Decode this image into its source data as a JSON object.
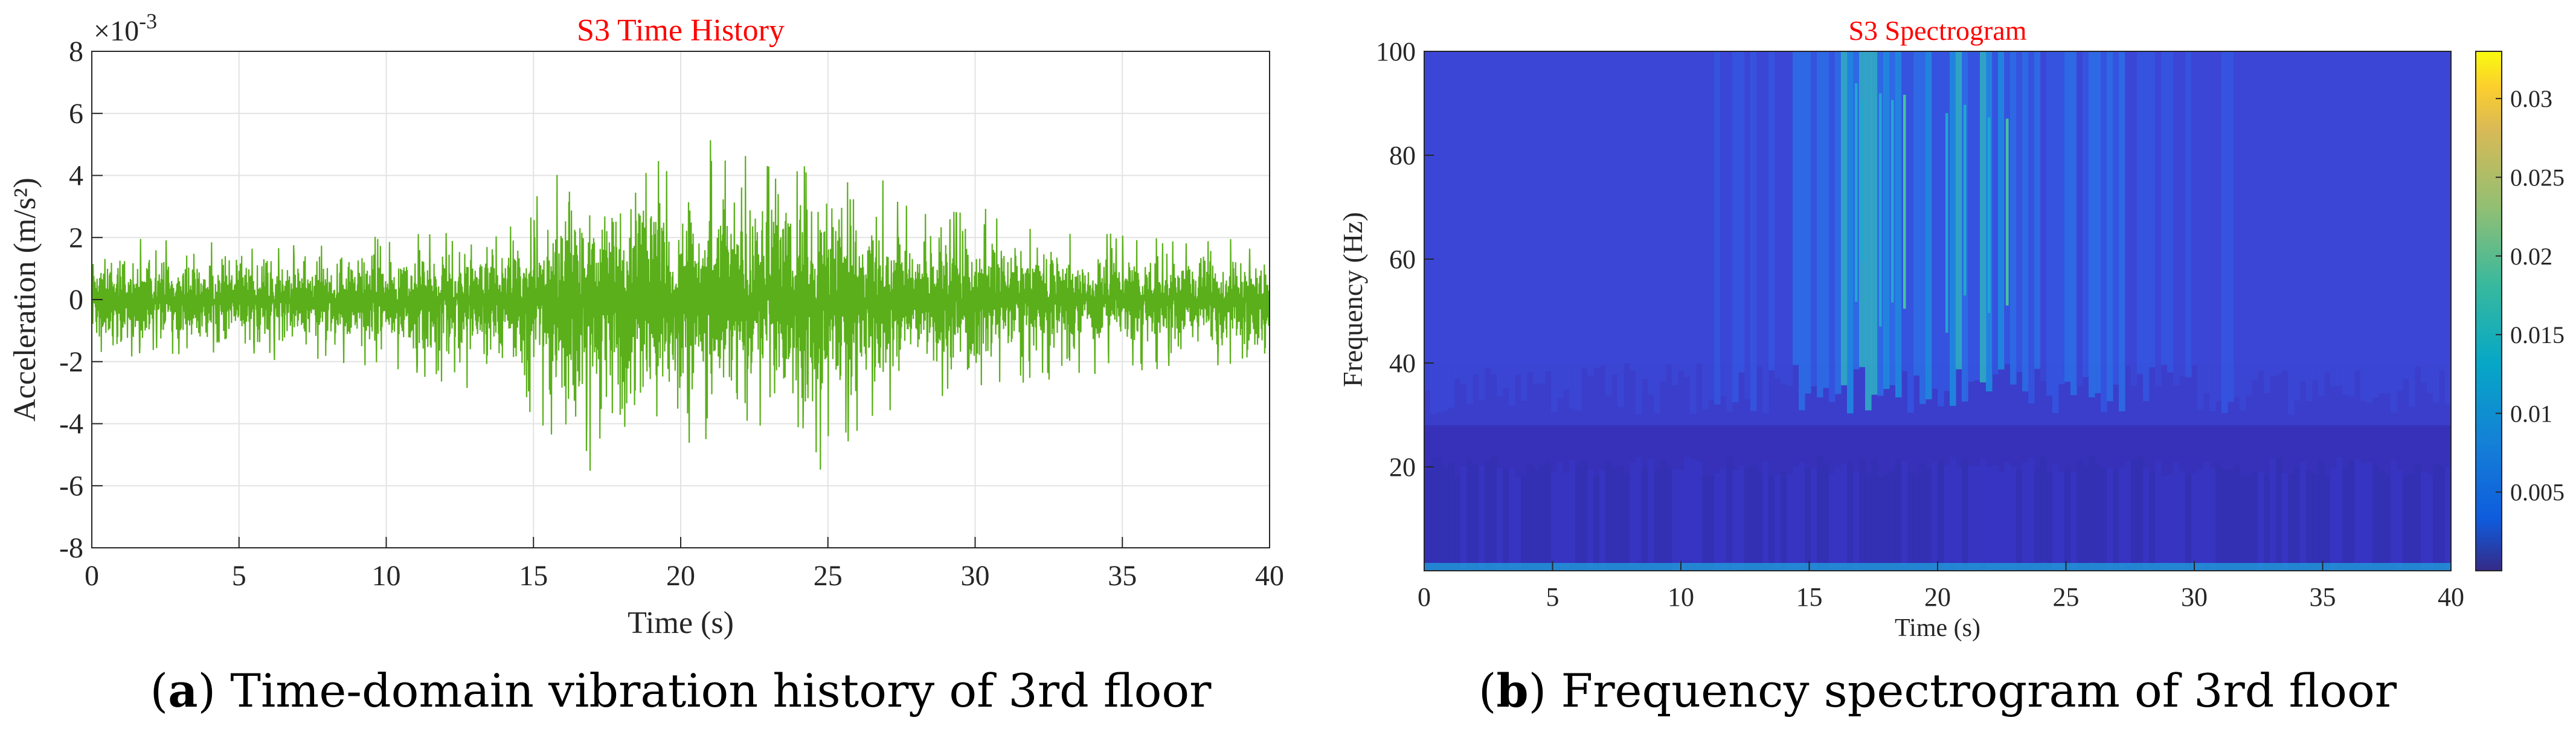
{
  "chart_data": [
    {
      "type": "line",
      "title": "S3 Time History",
      "xlabel": "Time (s)",
      "ylabel": "Acceleration (m/s²)",
      "exponent_label": "×10",
      "exponent_power": "-3",
      "xlim": [
        0,
        40
      ],
      "ylim": [
        -8,
        8
      ],
      "xticks": [
        "0",
        "5",
        "10",
        "15",
        "20",
        "25",
        "30",
        "35",
        "40"
      ],
      "yticks": [
        "-8",
        "-6",
        "-4",
        "-2",
        "0",
        "2",
        "4",
        "6",
        "8"
      ],
      "grid": true,
      "line_color": "#5aaf1a",
      "title_color": "#ff0000",
      "envelope": {
        "t": [
          0,
          2,
          4,
          6,
          8,
          10,
          12,
          14,
          15,
          16,
          17,
          18,
          19,
          20,
          21,
          22,
          23,
          24,
          25,
          26,
          27,
          28,
          30,
          32,
          34,
          36,
          38,
          40
        ],
        "max": [
          1.8,
          2.0,
          1.9,
          1.9,
          2.0,
          2.1,
          2.3,
          3.0,
          3.8,
          4.5,
          4.8,
          4.2,
          4.9,
          4.6,
          5.9,
          5.0,
          4.6,
          4.3,
          5.7,
          4.1,
          3.9,
          3.1,
          3.0,
          2.6,
          2.2,
          2.0,
          2.1,
          1.7
        ],
        "min": [
          -2.5,
          -1.8,
          -2.0,
          -2.0,
          -2.1,
          -2.3,
          -2.8,
          -3.6,
          -4.3,
          -5.2,
          -5.6,
          -6.2,
          -5.0,
          -4.8,
          -4.5,
          -4.3,
          -4.2,
          -4.6,
          -5.8,
          -4.3,
          -4.0,
          -3.4,
          -3.0,
          -2.8,
          -2.4,
          -2.3,
          -2.2,
          -2.6
        ]
      },
      "caption_letter": "a",
      "caption_text": "Time-domain vibration history of 3rd floor"
    },
    {
      "type": "heatmap",
      "title": "S3 Spectrogram",
      "xlabel": "Time (s)",
      "ylabel": "Frequency (Hz)",
      "xlim": [
        0,
        40
      ],
      "ylim": [
        0,
        100
      ],
      "xticks": [
        "0",
        "5",
        "10",
        "15",
        "20",
        "25",
        "30",
        "35",
        "40"
      ],
      "yticks": [
        "20",
        "40",
        "60",
        "80",
        "100"
      ],
      "colorbar_ticks": [
        "0.005",
        "0.01",
        "0.015",
        "0.02",
        "0.025",
        "0.03"
      ],
      "colorbar_range": [
        0,
        0.033
      ],
      "colormap": "parula",
      "title_color": "#ff0000",
      "intensity_profile": {
        "t": [
          0,
          5,
          10,
          13,
          15,
          17,
          19,
          21,
          23,
          25,
          27,
          30,
          35,
          40
        ],
        "level": [
          0.3,
          0.3,
          0.35,
          0.6,
          0.85,
          1.0,
          1.0,
          1.0,
          0.95,
          0.85,
          0.7,
          0.5,
          0.35,
          0.3
        ]
      },
      "caption_letter": "b",
      "caption_text": "Frequency spectrogram of 3rd floor"
    }
  ]
}
